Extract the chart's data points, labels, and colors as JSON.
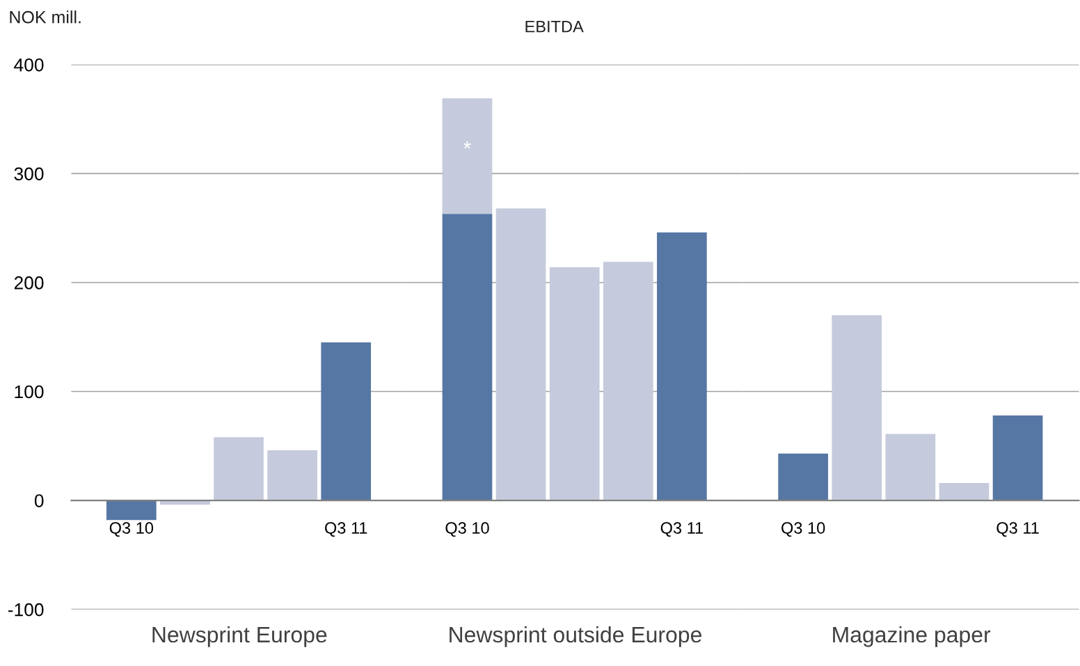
{
  "chart_data": [
    {
      "type": "bar",
      "ylabel": "NOK mill.",
      "xlabel": "Newsprint Europe",
      "categories": [
        "Q3 10",
        null,
        null,
        null,
        "Q3 11"
      ],
      "values": [
        -18,
        -4,
        58,
        46,
        145
      ],
      "colors": [
        "#5677a4",
        "#c5cbdc",
        "#c5cbdc",
        "#c5cbdc",
        "#5677a4"
      ],
      "ylim": [
        -100,
        400
      ],
      "yticks": [
        -100,
        0,
        100,
        200,
        300,
        400
      ],
      "grid": "y"
    },
    {
      "type": "bar",
      "title": "EBITDA",
      "xlabel": "Newsprint outside Europe",
      "categories": [
        "Q3 10",
        null,
        null,
        null,
        "Q3 11"
      ],
      "stacked": true,
      "series": [
        {
          "colors": [
            "#5677a4",
            "#c5cbdc",
            "#c5cbdc",
            "#c5cbdc",
            "#5677a4"
          ],
          "values": [
            263,
            268,
            214,
            219,
            246
          ]
        },
        {
          "color": "#c5cbdc",
          "values": [
            106,
            null,
            null,
            null,
            null
          ]
        }
      ],
      "annotations": [
        "*"
      ],
      "ylim": [
        -100,
        400
      ],
      "yticks": [
        -100,
        0,
        100,
        200,
        300,
        400
      ],
      "grid": "y",
      "tick_labels": "x"
    },
    {
      "type": "bar",
      "xlabel": "Magazine paper",
      "categories": [
        "Q3 10",
        null,
        null,
        null,
        "Q3 11"
      ],
      "values": [
        43,
        170,
        61,
        16,
        78
      ],
      "colors": [
        "#5677a4",
        "#c5cbdc",
        "#c5cbdc",
        "#c5cbdc",
        "#5677a4"
      ],
      "ylim": [
        -100,
        400
      ],
      "yticks": [
        -100,
        0,
        100,
        200,
        300,
        400
      ],
      "grid": "y",
      "tick_labels": "x"
    }
  ]
}
